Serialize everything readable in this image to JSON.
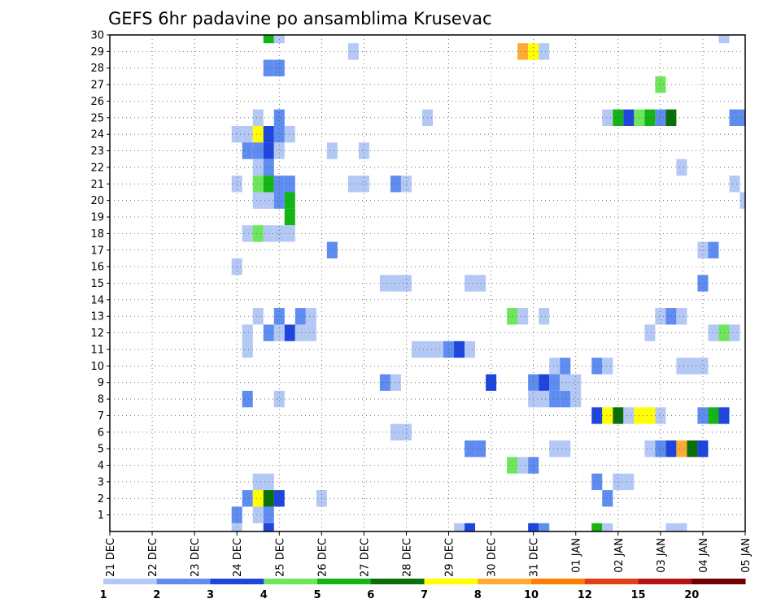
{
  "chart_data": {
    "type": "heatmap",
    "title": "GEFS 6hr padavine po ansamblima Krusevac",
    "xlabel": "",
    "ylabel": "",
    "x_ticks": [
      "21 DEC",
      "22 DEC",
      "23 DEC",
      "24 DEC",
      "25 DEC",
      "26 DEC",
      "27 DEC",
      "28 DEC",
      "29 DEC",
      "30 DEC",
      "31 DEC",
      "01 JAN",
      "02 JAN",
      "03 JAN",
      "04 JAN",
      "05 JAN"
    ],
    "x_range": [
      0,
      60
    ],
    "x_unit": "6-hour steps from 21 DEC 00Z",
    "y_ticks": [
      1,
      2,
      3,
      4,
      5,
      6,
      7,
      8,
      9,
      10,
      11,
      12,
      13,
      14,
      15,
      16,
      17,
      18,
      19,
      20,
      21,
      22,
      23,
      24,
      25,
      26,
      27,
      28,
      29,
      30
    ],
    "y_range": [
      0,
      30
    ],
    "grid": true,
    "legend": {
      "position": "bottom",
      "labels": [
        "1",
        "2",
        "3",
        "4",
        "5",
        "6",
        "7",
        "8",
        "10",
        "12",
        "15",
        "20"
      ],
      "colors": [
        "#b4c8f5",
        "#5f8cf0",
        "#1e46dc",
        "#6ee65a",
        "#14b414",
        "#0a6e0a",
        "#ffff00",
        "#ffaa32",
        "#ff7d00",
        "#e63c14",
        "#b41414",
        "#6e0000"
      ]
    },
    "cells": [
      [
        15,
        30,
        5
      ],
      [
        16,
        30,
        1
      ],
      [
        58,
        30,
        1
      ],
      [
        23,
        29,
        1
      ],
      [
        39,
        29,
        8
      ],
      [
        40,
        29,
        7
      ],
      [
        41,
        29,
        1
      ],
      [
        15,
        28,
        2
      ],
      [
        16,
        28,
        2
      ],
      [
        52,
        27,
        4
      ],
      [
        14,
        25,
        1
      ],
      [
        16,
        25,
        2
      ],
      [
        30,
        25,
        1
      ],
      [
        47,
        25,
        1
      ],
      [
        48,
        25,
        5
      ],
      [
        49,
        25,
        3
      ],
      [
        50,
        25,
        4
      ],
      [
        51,
        25,
        5
      ],
      [
        52,
        25,
        2
      ],
      [
        53,
        25,
        6
      ],
      [
        59,
        25,
        2
      ],
      [
        60,
        25,
        2
      ],
      [
        12,
        24,
        1
      ],
      [
        13,
        24,
        1
      ],
      [
        14,
        24,
        7
      ],
      [
        15,
        24,
        3
      ],
      [
        16,
        24,
        2
      ],
      [
        17,
        24,
        1
      ],
      [
        13,
        23,
        2
      ],
      [
        14,
        23,
        2
      ],
      [
        15,
        23,
        3
      ],
      [
        16,
        23,
        1
      ],
      [
        21,
        23,
        1
      ],
      [
        24,
        23,
        1
      ],
      [
        14,
        22,
        1
      ],
      [
        15,
        22,
        2
      ],
      [
        54,
        22,
        1
      ],
      [
        12,
        21,
        1
      ],
      [
        14,
        21,
        4
      ],
      [
        15,
        21,
        5
      ],
      [
        16,
        21,
        2
      ],
      [
        17,
        21,
        2
      ],
      [
        23,
        21,
        1
      ],
      [
        24,
        21,
        1
      ],
      [
        27,
        21,
        2
      ],
      [
        28,
        21,
        1
      ],
      [
        59,
        21,
        1
      ],
      [
        14,
        20,
        1
      ],
      [
        15,
        20,
        1
      ],
      [
        16,
        20,
        2
      ],
      [
        17,
        20,
        5
      ],
      [
        60,
        20,
        1
      ],
      [
        17,
        19,
        5
      ],
      [
        13,
        18,
        1
      ],
      [
        14,
        18,
        4
      ],
      [
        15,
        18,
        1
      ],
      [
        16,
        18,
        1
      ],
      [
        17,
        18,
        1
      ],
      [
        21,
        17,
        2
      ],
      [
        56,
        17,
        1
      ],
      [
        57,
        17,
        2
      ],
      [
        12,
        16,
        1
      ],
      [
        26,
        15,
        1
      ],
      [
        27,
        15,
        1
      ],
      [
        28,
        15,
        1
      ],
      [
        34,
        15,
        1
      ],
      [
        35,
        15,
        1
      ],
      [
        56,
        15,
        2
      ],
      [
        14,
        13,
        1
      ],
      [
        16,
        13,
        2
      ],
      [
        18,
        13,
        2
      ],
      [
        19,
        13,
        1
      ],
      [
        38,
        13,
        4
      ],
      [
        39,
        13,
        1
      ],
      [
        41,
        13,
        1
      ],
      [
        52,
        13,
        1
      ],
      [
        53,
        13,
        2
      ],
      [
        54,
        13,
        1
      ],
      [
        13,
        12,
        1
      ],
      [
        15,
        12,
        2
      ],
      [
        16,
        12,
        1
      ],
      [
        17,
        12,
        3
      ],
      [
        18,
        12,
        1
      ],
      [
        19,
        12,
        1
      ],
      [
        51,
        12,
        1
      ],
      [
        57,
        12,
        1
      ],
      [
        58,
        12,
        4
      ],
      [
        59,
        12,
        1
      ],
      [
        13,
        11,
        1
      ],
      [
        29,
        11,
        1
      ],
      [
        30,
        11,
        1
      ],
      [
        31,
        11,
        1
      ],
      [
        32,
        11,
        2
      ],
      [
        33,
        11,
        3
      ],
      [
        34,
        11,
        1
      ],
      [
        42,
        10,
        1
      ],
      [
        43,
        10,
        2
      ],
      [
        46,
        10,
        2
      ],
      [
        47,
        10,
        1
      ],
      [
        54,
        10,
        1
      ],
      [
        55,
        10,
        1
      ],
      [
        56,
        10,
        1
      ],
      [
        26,
        9,
        2
      ],
      [
        27,
        9,
        1
      ],
      [
        36,
        9,
        3
      ],
      [
        40,
        9,
        2
      ],
      [
        41,
        9,
        3
      ],
      [
        42,
        9,
        2
      ],
      [
        43,
        9,
        1
      ],
      [
        44,
        9,
        1
      ],
      [
        13,
        8,
        2
      ],
      [
        16,
        8,
        1
      ],
      [
        40,
        8,
        1
      ],
      [
        41,
        8,
        1
      ],
      [
        42,
        8,
        2
      ],
      [
        43,
        8,
        2
      ],
      [
        44,
        8,
        1
      ],
      [
        46,
        7,
        3
      ],
      [
        47,
        7,
        7
      ],
      [
        48,
        7,
        6
      ],
      [
        49,
        7,
        1
      ],
      [
        50,
        7,
        7
      ],
      [
        51,
        7,
        7
      ],
      [
        52,
        7,
        1
      ],
      [
        56,
        7,
        2
      ],
      [
        57,
        7,
        5
      ],
      [
        58,
        7,
        3
      ],
      [
        27,
        6,
        1
      ],
      [
        28,
        6,
        1
      ],
      [
        34,
        5,
        2
      ],
      [
        35,
        5,
        2
      ],
      [
        42,
        5,
        1
      ],
      [
        43,
        5,
        1
      ],
      [
        51,
        5,
        1
      ],
      [
        52,
        5,
        2
      ],
      [
        53,
        5,
        3
      ],
      [
        54,
        5,
        8
      ],
      [
        55,
        5,
        6
      ],
      [
        56,
        5,
        3
      ],
      [
        38,
        4,
        4
      ],
      [
        39,
        4,
        1
      ],
      [
        40,
        4,
        2
      ],
      [
        14,
        3,
        1
      ],
      [
        15,
        3,
        1
      ],
      [
        46,
        3,
        2
      ],
      [
        48,
        3,
        1
      ],
      [
        49,
        3,
        1
      ],
      [
        13,
        2,
        2
      ],
      [
        14,
        2,
        7
      ],
      [
        15,
        2,
        6
      ],
      [
        16,
        2,
        3
      ],
      [
        20,
        2,
        1
      ],
      [
        47,
        2,
        2
      ],
      [
        12,
        1,
        2
      ],
      [
        14,
        1,
        1
      ],
      [
        15,
        1,
        2
      ],
      [
        12,
        0,
        1
      ],
      [
        15,
        0,
        3
      ],
      [
        33,
        0,
        1
      ],
      [
        34,
        0,
        3
      ],
      [
        40,
        0,
        3
      ],
      [
        41,
        0,
        2
      ],
      [
        46,
        0,
        5
      ],
      [
        47,
        0,
        1
      ],
      [
        53,
        0,
        1
      ],
      [
        54,
        0,
        1
      ]
    ]
  }
}
